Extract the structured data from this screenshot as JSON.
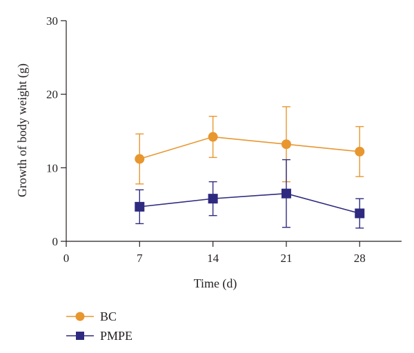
{
  "chart_data": {
    "type": "line",
    "x": [
      7,
      14,
      21,
      28
    ],
    "xlabel": "Time (d)",
    "ylabel": "Growth of body weight (g)",
    "xlim": [
      0,
      32
    ],
    "ylim": [
      0,
      30
    ],
    "xticks": [
      "0",
      "7",
      "14",
      "21",
      "28"
    ],
    "yticks": [
      "0",
      "10",
      "20",
      "30"
    ],
    "grid": false,
    "legend_position": "bottom-left",
    "series": [
      {
        "name": "BC",
        "marker": "circle",
        "color": "#e8962e",
        "values": [
          11.2,
          14.2,
          13.2,
          12.2
        ],
        "error": [
          3.4,
          2.8,
          5.1,
          3.4
        ]
      },
      {
        "name": "PMPE",
        "marker": "square",
        "color": "#2e2a7f",
        "values": [
          4.7,
          5.8,
          6.5,
          3.8
        ],
        "error": [
          2.3,
          2.3,
          4.6,
          2.0
        ]
      }
    ]
  }
}
